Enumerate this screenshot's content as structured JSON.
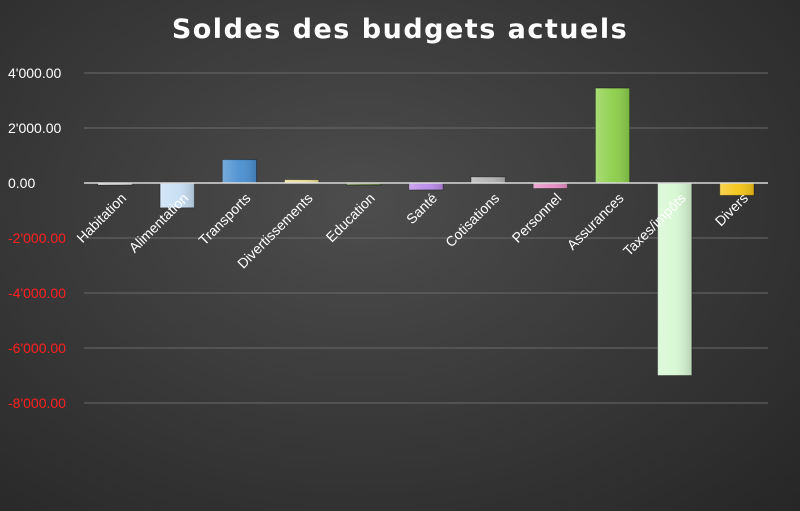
{
  "chart_data": {
    "type": "bar",
    "title": "Soldes des budgets actuels",
    "xlabel": "",
    "ylabel": "",
    "categories": [
      "Habitation",
      "Alimentation",
      "Transports",
      "Divertissements",
      "Education",
      "Santé",
      "Cotisations",
      "Personnel",
      "Assurances",
      "Taxes/impôts",
      "Divers"
    ],
    "values": [
      -20,
      -900,
      850,
      120,
      -60,
      -250,
      220,
      -200,
      3450,
      -7000,
      -450
    ],
    "bar_colors": [
      "#d9d9d9",
      "#c7def4",
      "#4a8fd0",
      "#f0e59a",
      "#6f8f4a",
      "#b98ae8",
      "#b3b3b3",
      "#e58fc4",
      "#8ccf4a",
      "#d6f7d2",
      "#f5c518"
    ],
    "yticks": [
      4000,
      2000,
      0,
      -2000,
      -4000,
      -6000,
      -8000
    ],
    "ytick_labels": [
      "4'000.00",
      "2'000.00",
      "0.00",
      "-2'000.00",
      "-4'000.00",
      "-6'000.00",
      "-8'000.00"
    ],
    "ylim": [
      -8000,
      4000
    ],
    "grid": true,
    "legend": "none",
    "positive_label_color": "#ffffff",
    "negative_label_color": "#ff2020"
  }
}
